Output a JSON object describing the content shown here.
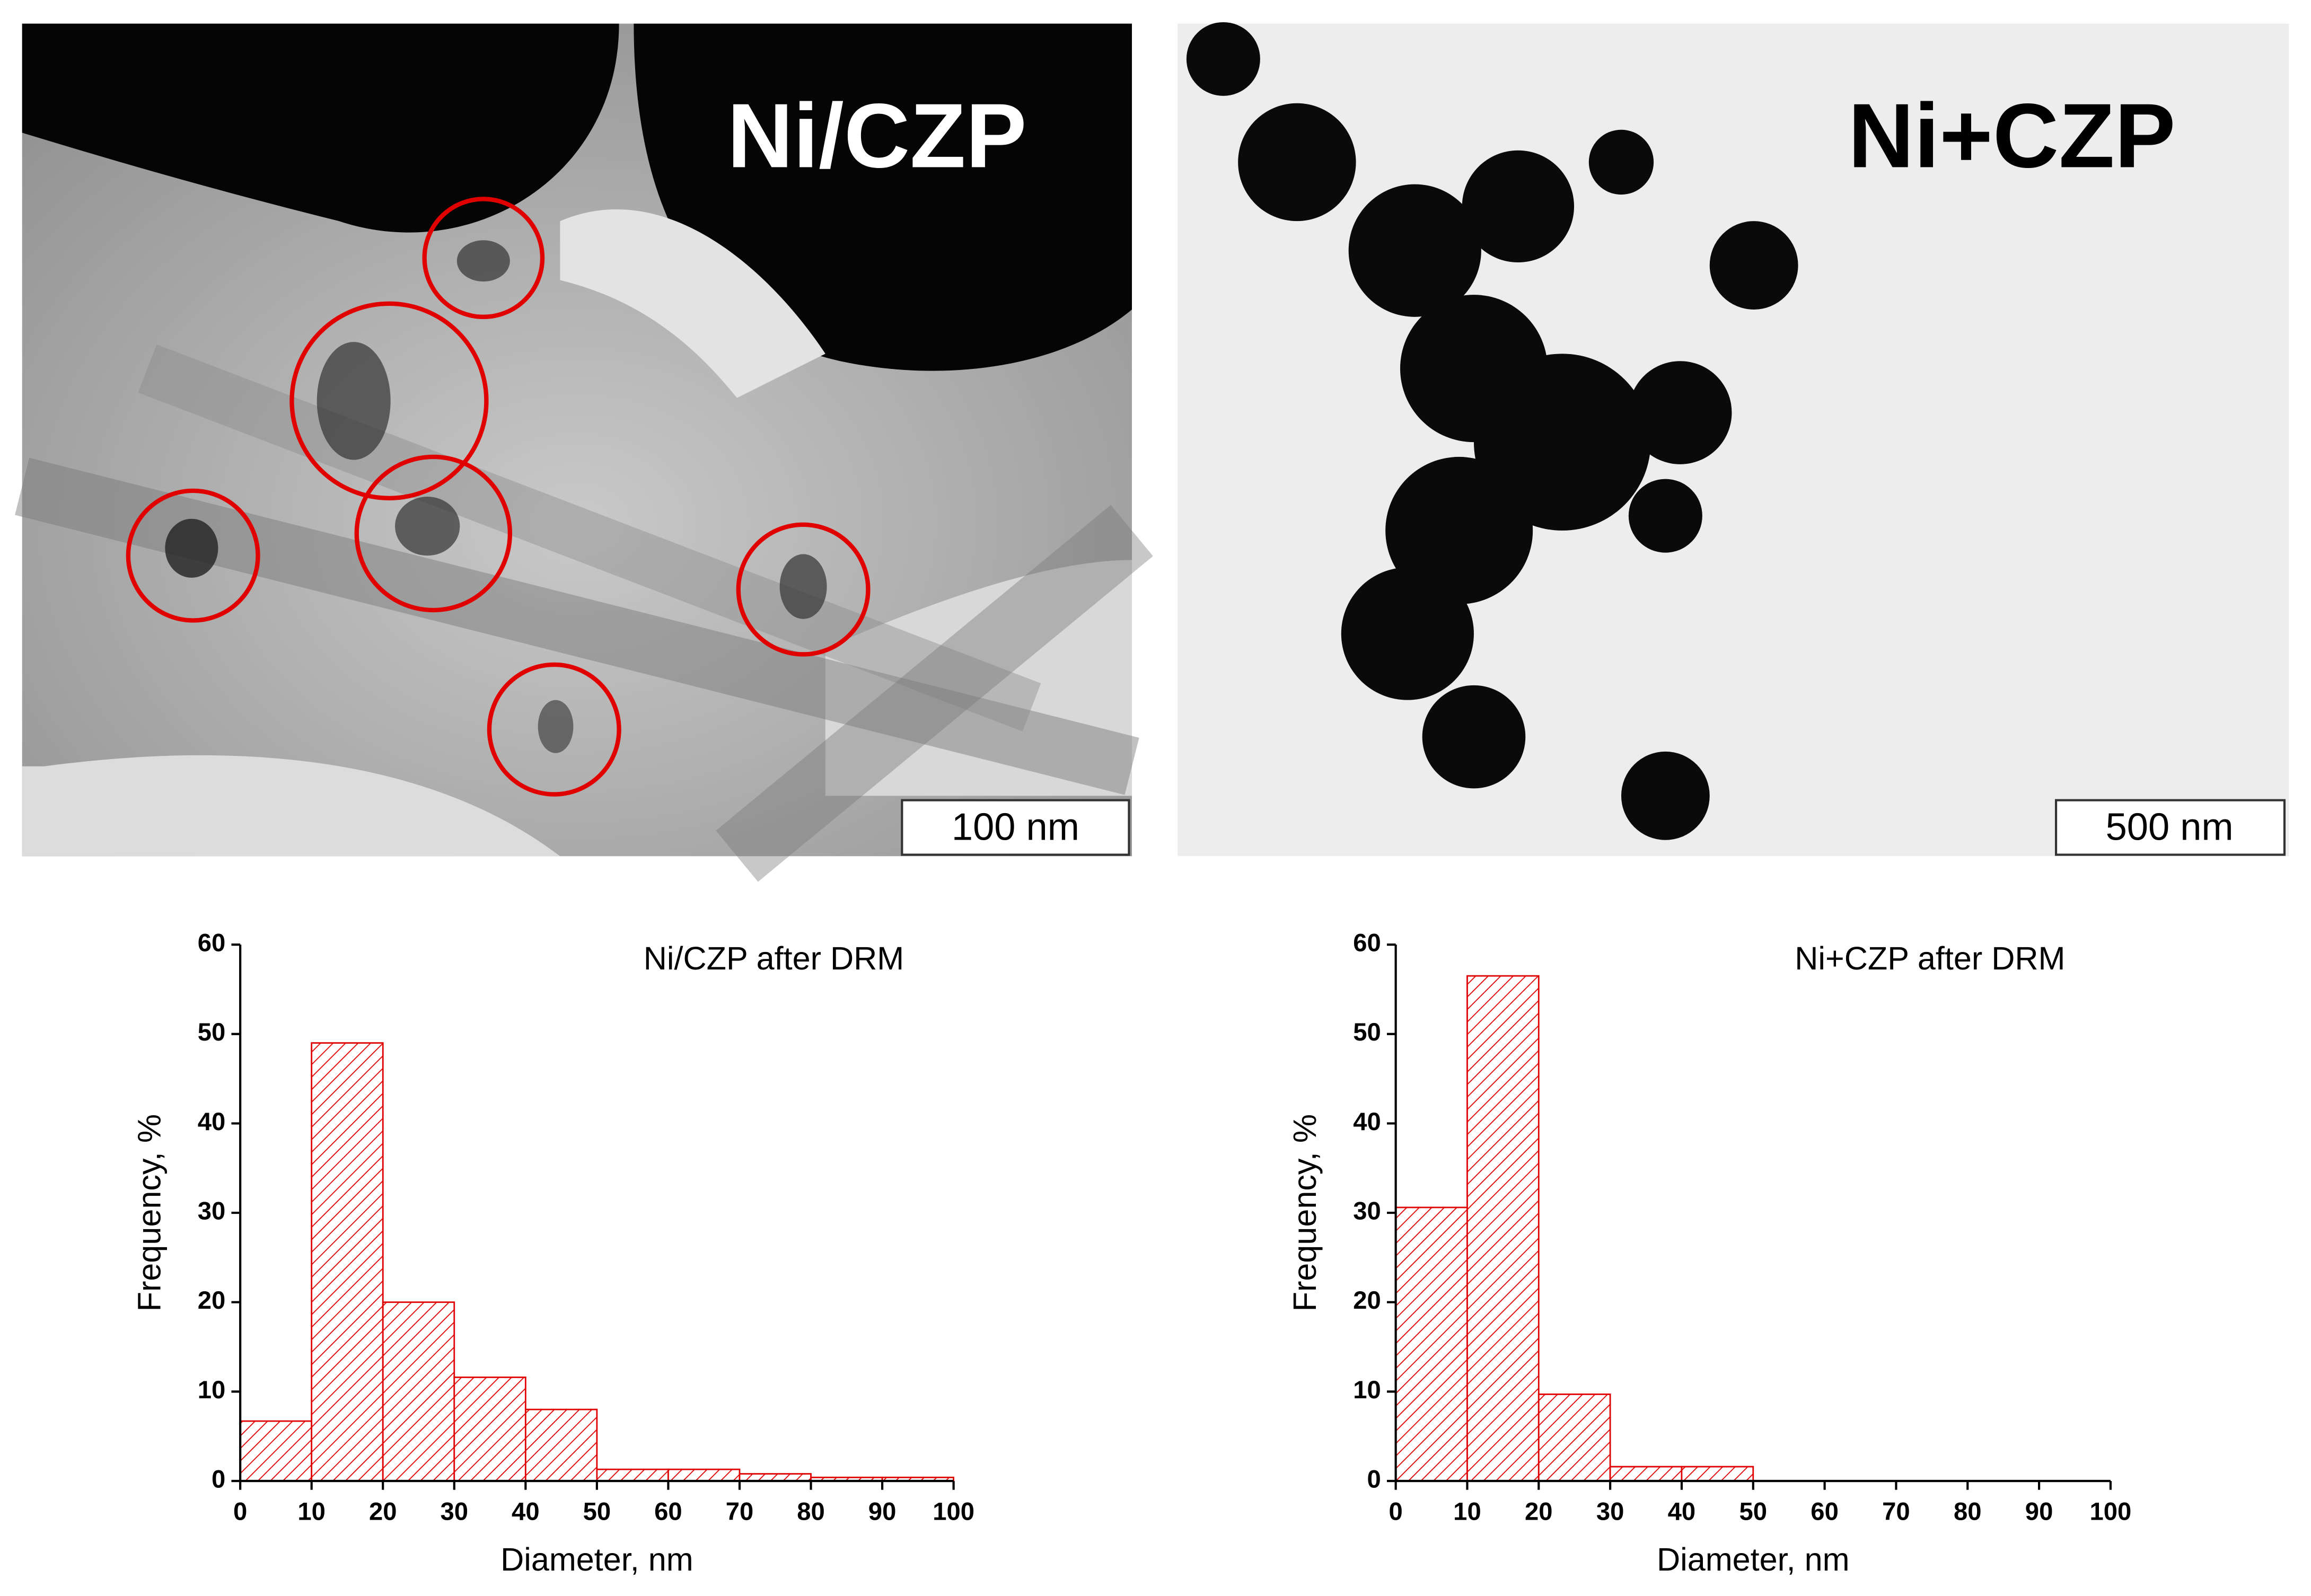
{
  "images": [
    {
      "label": "Ni/CZP",
      "scale_bar": "100 nm"
    },
    {
      "label": "Ni+CZP",
      "scale_bar": "500 nm"
    }
  ],
  "chart_data": [
    {
      "type": "histogram",
      "title": "Ni/CZP after DRM",
      "x_label": "Diameter, nm",
      "y_label": "Frequency, %",
      "bins": [
        0,
        10,
        20,
        30,
        40,
        50,
        60,
        70,
        80,
        90,
        100
      ],
      "values": [
        6.7,
        49,
        20,
        11.6,
        8,
        1.3,
        1.3,
        0.8,
        0.4,
        0.4
      ],
      "color": "#e00000",
      "xlim": [
        0,
        100
      ],
      "ylim": [
        0,
        60
      ],
      "xticks": [
        0,
        10,
        20,
        30,
        40,
        50,
        60,
        70,
        80,
        90,
        100
      ],
      "yticks": [
        0,
        10,
        20,
        30,
        40,
        50,
        60
      ]
    },
    {
      "type": "histogram",
      "title": "Ni+CZP after DRM",
      "x_label": "Diameter, nm",
      "y_label": "Frequency, %",
      "bins": [
        0,
        10,
        20,
        30,
        40,
        50,
        60,
        70,
        80,
        90,
        100
      ],
      "values": [
        30.6,
        56.5,
        9.7,
        1.6,
        1.6,
        0,
        0,
        0,
        0,
        0
      ],
      "color": "#e00000",
      "xlim": [
        0,
        100
      ],
      "ylim": [
        0,
        60
      ],
      "xticks": [
        0,
        10,
        20,
        30,
        40,
        50,
        60,
        70,
        80,
        90,
        100
      ],
      "yticks": [
        0,
        10,
        20,
        30,
        40,
        50,
        60
      ]
    }
  ]
}
